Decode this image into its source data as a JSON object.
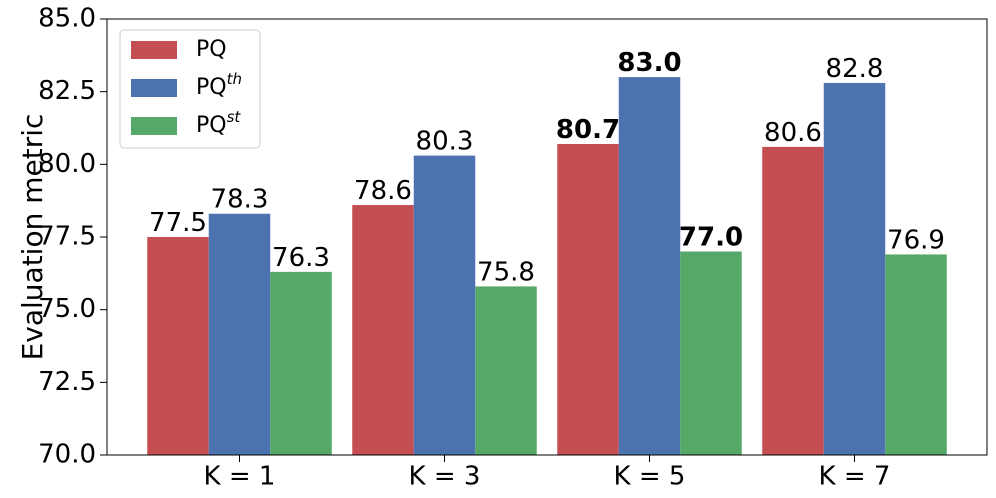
{
  "chart_data": {
    "type": "bar",
    "ylabel": "Evaluation metric",
    "categories": [
      "K = 1",
      "K = 3",
      "K = 5",
      "K = 7"
    ],
    "series": [
      {
        "name": "PQ",
        "color": "#c44e52",
        "values": [
          77.5,
          78.6,
          80.7,
          80.6
        ],
        "value_labels": [
          "77.5",
          "78.6",
          "80.7",
          "80.6"
        ],
        "bold": [
          false,
          false,
          true,
          false
        ]
      },
      {
        "name": "PQ",
        "name_sup": "th",
        "color": "#4c72b0",
        "values": [
          78.3,
          80.3,
          83.0,
          82.8
        ],
        "value_labels": [
          "78.3",
          "80.3",
          "83.0",
          "82.8"
        ],
        "bold": [
          false,
          false,
          true,
          false
        ]
      },
      {
        "name": "PQ",
        "name_sup": "st",
        "color": "#55a868",
        "values": [
          76.3,
          75.8,
          77.0,
          76.9
        ],
        "value_labels": [
          "76.3",
          "75.8",
          "77.0",
          "76.9"
        ],
        "bold": [
          false,
          false,
          true,
          false
        ]
      }
    ],
    "ylim": [
      70,
      85
    ],
    "yticks": [
      {
        "value": 70,
        "label": "70.0"
      },
      {
        "value": 72.5,
        "label": "72.5"
      },
      {
        "value": 75,
        "label": "75.0"
      },
      {
        "value": 77.5,
        "label": "77.5"
      },
      {
        "value": 80,
        "label": "80.0"
      },
      {
        "value": 82.5,
        "label": "82.5"
      },
      {
        "value": 85,
        "label": "85.0"
      }
    ],
    "grid": false,
    "legend": "upper left"
  }
}
